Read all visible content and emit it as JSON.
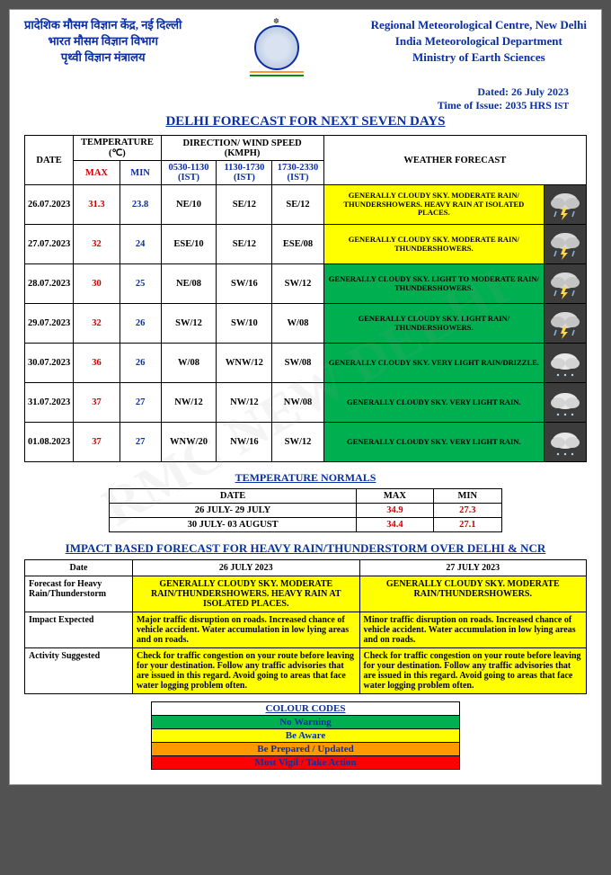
{
  "header": {
    "hindi_line1": "प्रादेशिक मौसम विज्ञान केंद्र, नई दिल्ली",
    "hindi_line2": "भारत मौसम विज्ञान विभाग",
    "hindi_line3": "पृथ्वी विज्ञान मंत्रालय",
    "eng_line1": "Regional Meteorological Centre, New Delhi",
    "eng_line2": "India Meteorological Department",
    "eng_line3": "Ministry of Earth Sciences",
    "dated": "Dated: 26 July 2023",
    "time_of_issue": "Time of Issue: 2035 HRS",
    "ist": "IST"
  },
  "colors": {
    "saffron": "#ff9933",
    "white": "#ffffff",
    "green_flag": "#138808",
    "blue": "#0a2fa0",
    "yellow_bg": "#ffff00",
    "green_bg": "#00b050",
    "red": "#cc0000",
    "orange_bg": "#ff9900",
    "red_bg": "#ff0000",
    "icon_bg": "#3c3c3c"
  },
  "titles": {
    "main": "DELHI FORECAST FOR NEXT SEVEN DAYS",
    "normals": "TEMPERATURE NORMALS",
    "impact": "IMPACT BASED FORECAST FOR HEAVY RAIN/THUNDERSTORM OVER DELHI & NCR",
    "color_codes": "COLOUR CODES"
  },
  "table_headers": {
    "date": "DATE",
    "temp": "TEMPERATURE (℃)",
    "max": "MAX",
    "min": "MIN",
    "wind": "DIRECTION/ WIND SPEED (KMPH)",
    "w1": "0530-1130 (IST)",
    "w2": "1130-1730 (IST)",
    "w3": "1730-2330 (IST)",
    "forecast": "WEATHER FORECAST"
  },
  "forecast_rows": [
    {
      "date": "26.07.2023",
      "max": "31.3",
      "min": "23.8",
      "w1": "NE/10",
      "w2": "SE/12",
      "w3": "SE/12",
      "text": "GENERALLY CLOUDY SKY. MODERATE RAIN/ THUNDERSHOWERS. HEAVY RAIN AT ISOLATED PLACES.",
      "bg": "#ffff00",
      "icon": "storm"
    },
    {
      "date": "27.07.2023",
      "max": "32",
      "min": "24",
      "w1": "ESE/10",
      "w2": "SE/12",
      "w3": "ESE/08",
      "text": "GENERALLY CLOUDY SKY. MODERATE RAIN/ THUNDERSHOWERS.",
      "bg": "#ffff00",
      "icon": "storm"
    },
    {
      "date": "28.07.2023",
      "max": "30",
      "min": "25",
      "w1": "NE/08",
      "w2": "SW/16",
      "w3": "SW/12",
      "text": "GENERALLY CLOUDY SKY. LIGHT TO MODERATE RAIN/ THUNDERSHOWERS.",
      "bg": "#00b050",
      "icon": "storm"
    },
    {
      "date": "29.07.2023",
      "max": "32",
      "min": "26",
      "w1": "SW/12",
      "w2": "SW/10",
      "w3": "W/08",
      "text": "GENERALLY CLOUDY SKY. LIGHT RAIN/ THUNDERSHOWERS.",
      "bg": "#00b050",
      "icon": "storm"
    },
    {
      "date": "30.07.2023",
      "max": "36",
      "min": "26",
      "w1": "W/08",
      "w2": "WNW/12",
      "w3": "SW/08",
      "text": "GENERALLY CLOUDY SKY. VERY LIGHT RAIN/DRIZZLE.",
      "bg": "#00b050",
      "icon": "cloud"
    },
    {
      "date": "31.07.2023",
      "max": "37",
      "min": "27",
      "w1": "NW/12",
      "w2": "NW/12",
      "w3": "NW/08",
      "text": "GENERALLY CLOUDY SKY. VERY LIGHT RAIN.",
      "bg": "#00b050",
      "icon": "cloud"
    },
    {
      "date": "01.08.2023",
      "max": "37",
      "min": "27",
      "w1": "WNW/20",
      "w2": "NW/16",
      "w3": "SW/12",
      "text": "GENERALLY CLOUDY SKY. VERY LIGHT RAIN.",
      "bg": "#00b050",
      "icon": "cloud"
    }
  ],
  "normals": {
    "headers": [
      "DATE",
      "MAX",
      "MIN"
    ],
    "rows": [
      {
        "date": "26 JULY- 29 JULY",
        "max": "34.9",
        "min": "27.3"
      },
      {
        "date": "30 JULY- 03 AUGUST",
        "max": "34.4",
        "min": "27.1"
      }
    ]
  },
  "impact": {
    "headers": [
      "Date",
      "26 JULY 2023",
      "27 JULY 2023"
    ],
    "rows": [
      {
        "label": "Forecast for Heavy Rain/Thunderstorm",
        "d1": "GENERALLY CLOUDY SKY. MODERATE RAIN/THUNDERSHOWERS. HEAVY RAIN AT ISOLATED PLACES.",
        "d1_align": "center",
        "d2": "GENERALLY CLOUDY SKY. MODERATE RAIN/THUNDERSHOWERS.",
        "d2_align": "center"
      },
      {
        "label": "Impact Expected",
        "d1": "Major traffic disruption on roads. Increased chance of vehicle accident. Water accumulation in low lying areas and on roads.",
        "d1_align": "left",
        "d2": "Minor traffic disruption on roads. Increased chance of vehicle accident. Water accumulation in low lying areas and on roads.",
        "d2_align": "left"
      },
      {
        "label": "Activity Suggested",
        "d1": "Check for traffic congestion on your route before leaving for your destination. Follow any traffic advisories that are issued in this regard. Avoid going to areas that face water logging problem often.",
        "d1_align": "left",
        "d2": "Check for traffic congestion on your route before leaving for your destination. Follow any traffic advisories that are issued in this regard. Avoid going to areas that face water logging problem often.",
        "d2_align": "left"
      }
    ]
  },
  "color_codes": [
    {
      "label": "No Warning",
      "bg": "#00b050",
      "fg": "#0a2fa0"
    },
    {
      "label": "Be Aware",
      "bg": "#ffff00",
      "fg": "#0a2fa0"
    },
    {
      "label": "Be Prepared / Updated",
      "bg": "#ff9900",
      "fg": "#0a2fa0"
    },
    {
      "label": "Most Vigil / Take Action",
      "bg": "#ff0000",
      "fg": "#0a2fa0"
    }
  ],
  "watermark": "RMC NEW DELHI"
}
